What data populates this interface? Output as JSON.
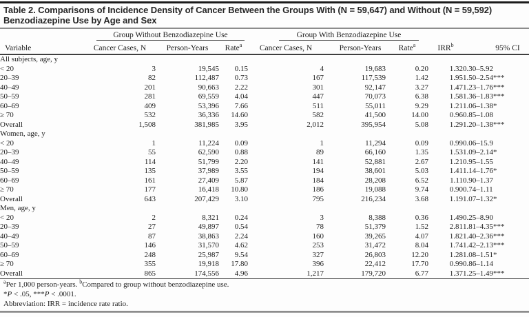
{
  "title": {
    "line1": "Table 2. Comparisons of Incidence Density of Cancer Between the Groups With (N = 59,647) and Without (N = 59,592)",
    "line2": "Benzodiazepine Use by Age and Sex"
  },
  "header": {
    "group_without": "Group Without Benzodiazepine Use",
    "group_with": "Group With Benzodiazepine Use",
    "variable": "Variable",
    "cancer_cases": "Cancer Cases, N",
    "person_years": "Person-Years",
    "rate": "Rate",
    "rate_sup": "a",
    "irr": "IRR",
    "irr_sup": "b",
    "ci": "95% CI"
  },
  "sections": [
    {
      "label": "All subjects, age, y",
      "rows": [
        {
          "label": "< 20",
          "values": [
            "3",
            "19,545",
            "0.15",
            "4",
            "19,683",
            "0.20",
            "1.32",
            "0.30–5.92"
          ]
        },
        {
          "label": "20–39",
          "values": [
            "82",
            "112,487",
            "0.73",
            "167",
            "117,539",
            "1.42",
            "1.95",
            "1.50–2.54***"
          ]
        },
        {
          "label": "40–49",
          "values": [
            "201",
            "90,663",
            "2.22",
            "301",
            "92,147",
            "3.27",
            "1.47",
            "1.23–1.76***"
          ]
        },
        {
          "label": "50–59",
          "values": [
            "281",
            "69,559",
            "4.04",
            "447",
            "70,073",
            "6.38",
            "1.58",
            "1.36–1.83***"
          ]
        },
        {
          "label": "60–69",
          "values": [
            "409",
            "53,396",
            "7.66",
            "511",
            "55,011",
            "9.29",
            "1.21",
            "1.06–1.38*"
          ]
        },
        {
          "label": "≥ 70",
          "values": [
            "532",
            "36,336",
            "14.60",
            "582",
            "41,500",
            "14.00",
            "0.96",
            "0.85–1.08"
          ]
        },
        {
          "label": "Overall",
          "values": [
            "1,508",
            "381,985",
            "3.95",
            "2,012",
            "395,954",
            "5.08",
            "1.29",
            "1.20–1.38***"
          ]
        }
      ]
    },
    {
      "label": "Women, age, y",
      "rows": [
        {
          "label": "< 20",
          "values": [
            "1",
            "11,224",
            "0.09",
            "1",
            "11,294",
            "0.09",
            "0.99",
            "0.06–15.9"
          ]
        },
        {
          "label": "20–39",
          "values": [
            "55",
            "62,590",
            "0.88",
            "89",
            "66,160",
            "1.35",
            "1.53",
            "1.09–2.14*"
          ]
        },
        {
          "label": "40–49",
          "values": [
            "114",
            "51,799",
            "2.20",
            "141",
            "52,881",
            "2.67",
            "1.21",
            "0.95–1.55"
          ]
        },
        {
          "label": "50–59",
          "values": [
            "135",
            "37,989",
            "3.55",
            "194",
            "38,601",
            "5.03",
            "1.41",
            "1.14–1.76*"
          ]
        },
        {
          "label": "60–69",
          "values": [
            "161",
            "27,409",
            "5.87",
            "184",
            "28,208",
            "6.52",
            "1.11",
            "0.90–1.37"
          ]
        },
        {
          "label": "≥ 70",
          "values": [
            "177",
            "16,418",
            "10.80",
            "186",
            "19,088",
            "9.74",
            "0.90",
            "0.74–1.11"
          ]
        },
        {
          "label": "Overall",
          "values": [
            "643",
            "207,429",
            "3.10",
            "795",
            "216,234",
            "3.68",
            "1.19",
            "1.07–1.32*"
          ]
        }
      ]
    },
    {
      "label": "Men, age, y",
      "rows": [
        {
          "label": "< 20",
          "values": [
            "2",
            "8,321",
            "0.24",
            "3",
            "8,388",
            "0.36",
            "1.49",
            "0.25–8.90"
          ]
        },
        {
          "label": "20–39",
          "values": [
            "27",
            "49,897",
            "0.54",
            "78",
            "51,379",
            "1.52",
            "2.81",
            "1.81–4.35***"
          ]
        },
        {
          "label": "40–49",
          "values": [
            "87",
            "38,863",
            "2.24",
            "160",
            "39,265",
            "4.07",
            "1.82",
            "1.40–2.36***"
          ]
        },
        {
          "label": "50–59",
          "values": [
            "146",
            "31,570",
            "4.62",
            "253",
            "31,472",
            "8.04",
            "1.74",
            "1.42–2.13***"
          ]
        },
        {
          "label": "60–69",
          "values": [
            "248",
            "25,987",
            "9.54",
            "327",
            "26,803",
            "12.20",
            "1.28",
            "1.08–1.51*"
          ]
        },
        {
          "label": "≥ 70",
          "values": [
            "355",
            "19,918",
            "17.80",
            "396",
            "22,412",
            "17.70",
            "0.99",
            "0.86–1.14"
          ]
        },
        {
          "label": "Overall",
          "values": [
            "865",
            "174,556",
            "4.96",
            "1,217",
            "179,720",
            "6.77",
            "1.37",
            "1.25–1.49***"
          ]
        }
      ]
    }
  ],
  "footnotes": {
    "sup_a": "a",
    "text_a": "Per 1,000 person-years. ",
    "sup_b": "b",
    "text_b": "Compared to group without benzodiazepine use.",
    "sig": {
      "s1": "*",
      "p1": "P",
      "t1": " < .05, ",
      "s2": "***",
      "p2": "P",
      "t2": " < .0001."
    },
    "abbreviation": "Abbreviation: IRR = incidence rate ratio."
  }
}
